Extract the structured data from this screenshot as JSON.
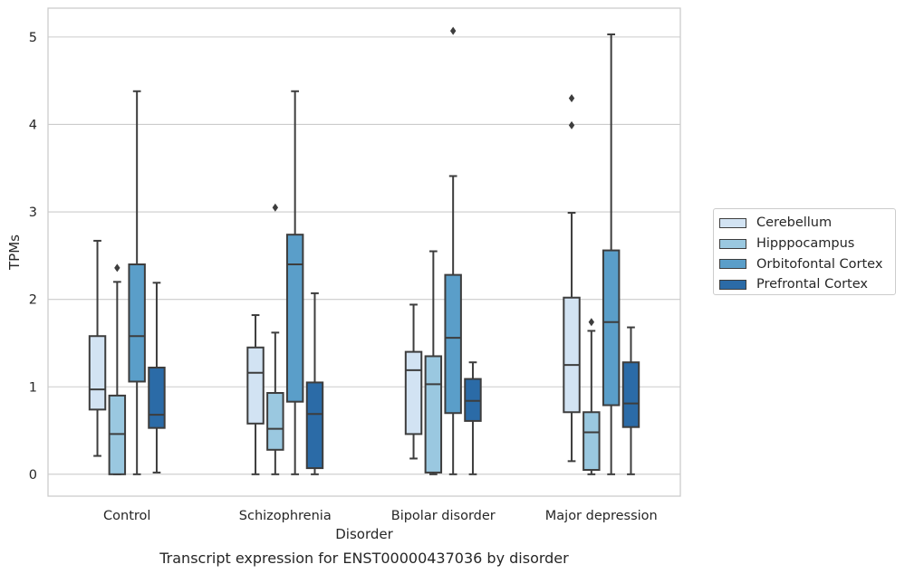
{
  "chart_data": {
    "type": "boxplot",
    "xlabel": "Disorder",
    "ylabel": "TPMs",
    "caption": "Transcript expression for ENST00000437036 by disorder",
    "categories": [
      "Control",
      "Schizophrenia",
      "Bipolar disorder",
      "Major depression"
    ],
    "ylim": [
      -0.25,
      5.33
    ],
    "yticks": [
      0,
      1,
      2,
      3,
      4,
      5
    ],
    "grid": true,
    "legend_position": "right",
    "series": [
      {
        "name": "Cerebellum",
        "color": "#d2e3f3",
        "boxes": [
          {
            "whislo": 0.21,
            "q1": 0.74,
            "med": 0.97,
            "q3": 1.58,
            "whishi": 2.67,
            "fliers": []
          },
          {
            "whislo": 0.0,
            "q1": 0.58,
            "med": 1.16,
            "q3": 1.45,
            "whishi": 1.82,
            "fliers": []
          },
          {
            "whislo": 0.18,
            "q1": 0.46,
            "med": 1.19,
            "q3": 1.4,
            "whishi": 1.94,
            "fliers": []
          },
          {
            "whislo": 0.15,
            "q1": 0.71,
            "med": 1.25,
            "q3": 2.02,
            "whishi": 2.99,
            "fliers": [
              3.99,
              4.3
            ]
          }
        ]
      },
      {
        "name": "Hipppocampus",
        "color": "#9ac8e0",
        "boxes": [
          {
            "whislo": 0.0,
            "q1": 0.0,
            "med": 0.46,
            "q3": 0.9,
            "whishi": 2.2,
            "fliers": [
              2.36
            ]
          },
          {
            "whislo": 0.0,
            "q1": 0.28,
            "med": 0.52,
            "q3": 0.93,
            "whishi": 1.62,
            "fliers": [
              3.05
            ]
          },
          {
            "whislo": 0.0,
            "q1": 0.02,
            "med": 1.03,
            "q3": 1.35,
            "whishi": 2.55,
            "fliers": []
          },
          {
            "whislo": 0.0,
            "q1": 0.05,
            "med": 0.48,
            "q3": 0.71,
            "whishi": 1.64,
            "fliers": [
              1.74
            ]
          }
        ]
      },
      {
        "name": "Orbitofontal Cortex",
        "color": "#5a9ec9",
        "boxes": [
          {
            "whislo": 0.0,
            "q1": 1.06,
            "med": 1.58,
            "q3": 2.4,
            "whishi": 4.38,
            "fliers": []
          },
          {
            "whislo": 0.0,
            "q1": 0.83,
            "med": 2.4,
            "q3": 2.74,
            "whishi": 4.38,
            "fliers": []
          },
          {
            "whislo": 0.0,
            "q1": 0.7,
            "med": 1.56,
            "q3": 2.28,
            "whishi": 3.41,
            "fliers": [
              5.07
            ]
          },
          {
            "whislo": 0.0,
            "q1": 0.79,
            "med": 1.74,
            "q3": 2.56,
            "whishi": 5.03,
            "fliers": []
          }
        ]
      },
      {
        "name": "Prefrontal Cortex",
        "color": "#2b6ba7",
        "boxes": [
          {
            "whislo": 0.02,
            "q1": 0.53,
            "med": 0.68,
            "q3": 1.22,
            "whishi": 2.19,
            "fliers": []
          },
          {
            "whislo": 0.0,
            "q1": 0.07,
            "med": 0.69,
            "q3": 1.05,
            "whishi": 2.07,
            "fliers": []
          },
          {
            "whislo": 0.0,
            "q1": 0.61,
            "med": 0.84,
            "q3": 1.09,
            "whishi": 1.28,
            "fliers": []
          },
          {
            "whislo": 0.0,
            "q1": 0.54,
            "med": 0.81,
            "q3": 1.28,
            "whishi": 1.68,
            "fliers": []
          }
        ]
      }
    ]
  }
}
